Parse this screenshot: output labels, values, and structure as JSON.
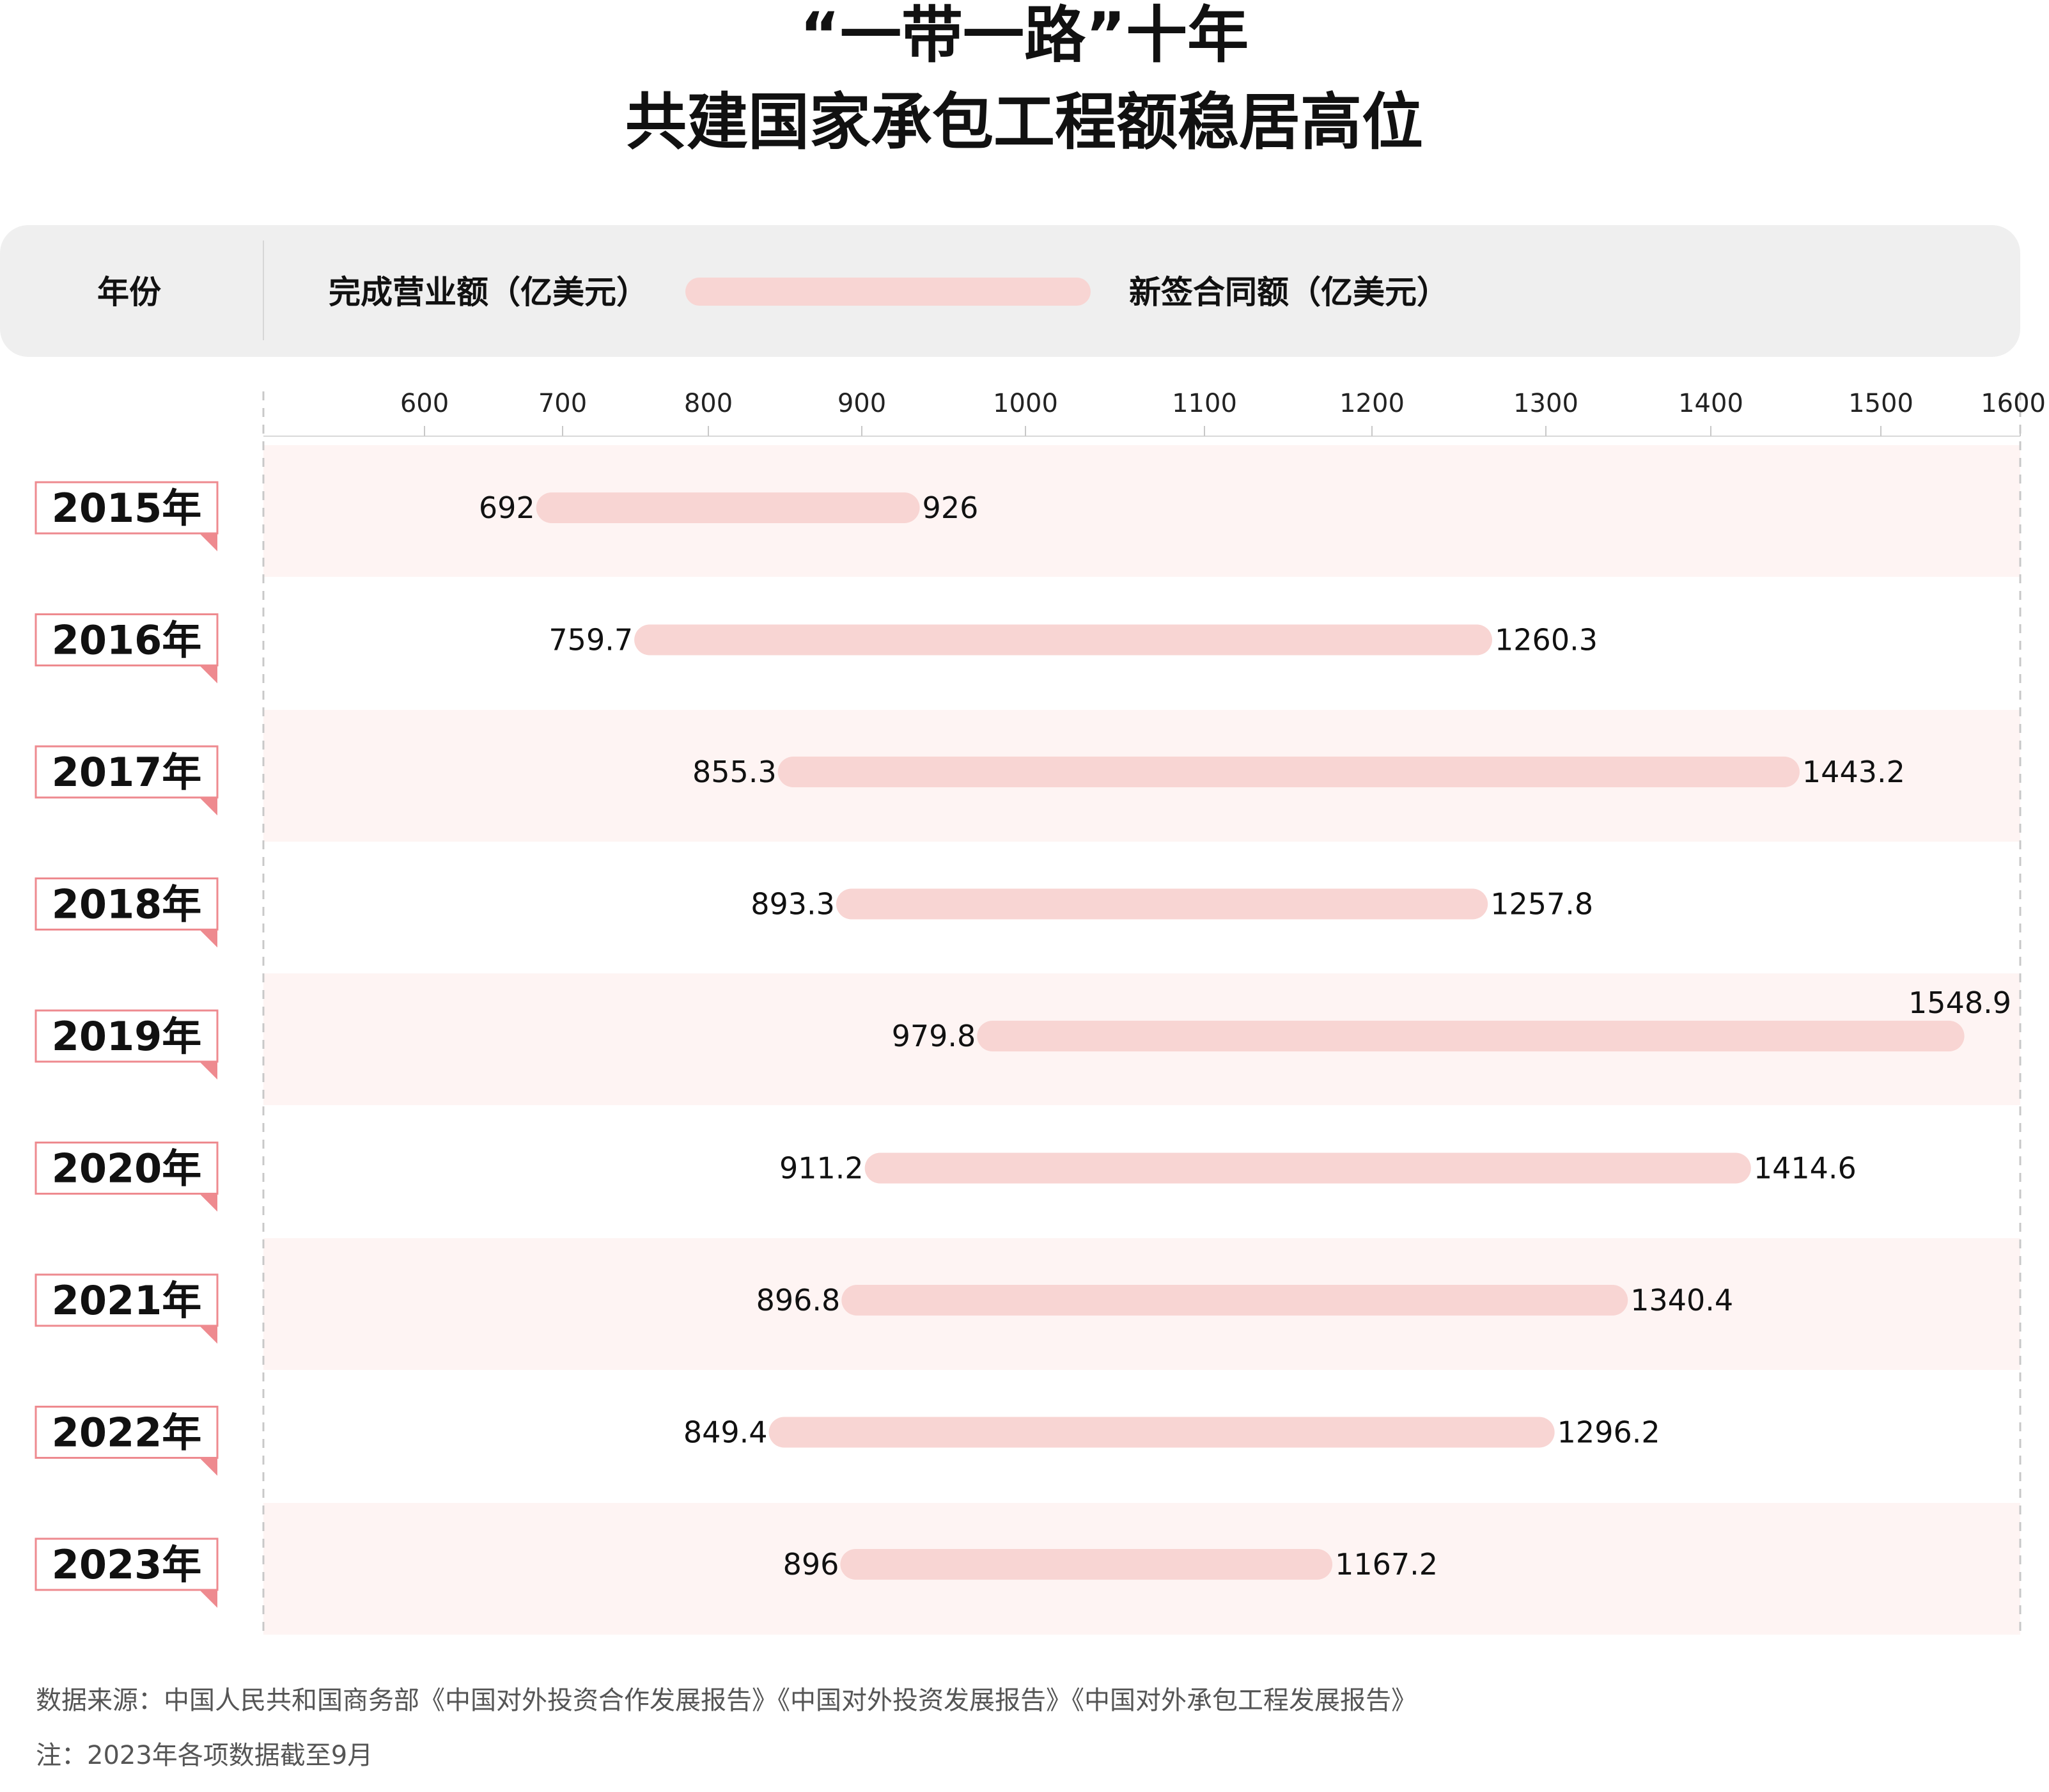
{
  "title_line1": "“一带一路”十年",
  "title_line2": "共建国家承包工程额稳居高位",
  "legend": {
    "year_label": "年份",
    "left_label": "完成营业额（亿美元）",
    "right_label": "新签合同额（亿美元）"
  },
  "source_text": "数据来源：中国人民共和国商务部《中国对外投资合作发展报告》《中国对外投资发展报告》《中国对外承包工程发展报告》",
  "note_text": "注：2023年各项数据截至9月",
  "colors": {
    "bar_start": "#F7B35A",
    "bar_end": "#E6515A",
    "bar_halo": "#F8D5D3",
    "row_band": "#FEF4F3",
    "tag_border": "#EE8A8F",
    "legend_bg": "#EFEFEF"
  },
  "chart_data": {
    "type": "dumbbell",
    "x_ticks": [
      "600",
      "700",
      "800",
      "900",
      "1000",
      "1100",
      "1200",
      "1300",
      "1400",
      "1500",
      "1600"
    ],
    "xlim": [
      600,
      1600
    ],
    "categories": [
      "2015年",
      "2016年",
      "2017年",
      "2018年",
      "2019年",
      "2020年",
      "2021年",
      "2022年",
      "2023年"
    ],
    "series": [
      {
        "name": "完成营业额（亿美元）",
        "values": [
          692,
          759.7,
          855.3,
          893.3,
          979.8,
          911.2,
          896.8,
          849.4,
          896
        ]
      },
      {
        "name": "新签合同额（亿美元）",
        "values": [
          926,
          1260.3,
          1443.2,
          1257.8,
          1548.9,
          1414.6,
          1340.4,
          1296.2,
          1167.2
        ]
      }
    ],
    "start_labels": [
      "692",
      "759.7",
      "855.3",
      "893.3",
      "979.8",
      "911.2",
      "896.8",
      "849.4",
      "896"
    ],
    "end_labels": [
      "926",
      "1260.3",
      "1443.2",
      "1257.8",
      "1548.9",
      "1414.6",
      "1340.4",
      "1296.2",
      "1167.2"
    ]
  }
}
